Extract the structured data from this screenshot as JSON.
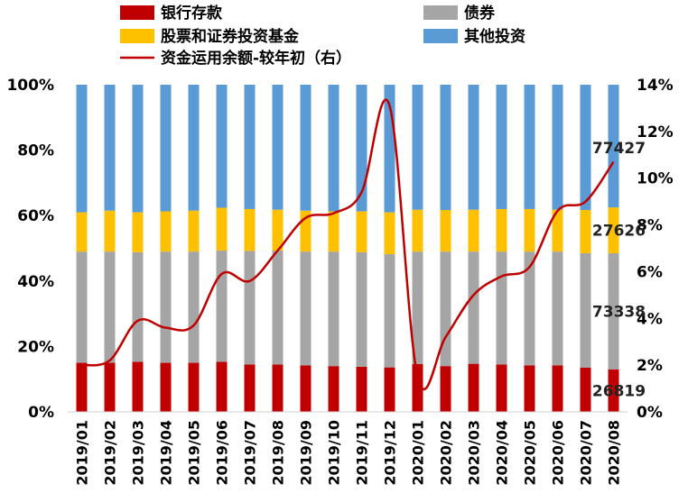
{
  "chart_data": {
    "type": "bar",
    "stacked": "percent",
    "categories": [
      "2019/01",
      "2019/02",
      "2019/03",
      "2019/04",
      "2019/05",
      "2019/06",
      "2019/07",
      "2019/08",
      "2019/09",
      "2019/10",
      "2019/11",
      "2019/12",
      "2020/01",
      "2020/02",
      "2020/03",
      "2020/04",
      "2020/05",
      "2020/06",
      "2020/07",
      "2020/08"
    ],
    "series": [
      {
        "name": "银行存款",
        "color": "#C00000",
        "values": [
          15.0,
          15.0,
          15.3,
          15.0,
          15.0,
          15.3,
          14.5,
          14.5,
          14.2,
          14.0,
          13.8,
          13.6,
          14.6,
          14.0,
          14.7,
          14.5,
          14.2,
          14.2,
          13.5,
          13.0
        ]
      },
      {
        "name": "债券",
        "color": "#A5A5A5",
        "values": [
          34.0,
          34.0,
          33.5,
          34.0,
          34.0,
          34.0,
          34.7,
          34.8,
          34.8,
          35.0,
          35.0,
          34.6,
          34.4,
          35.0,
          34.3,
          34.5,
          34.8,
          34.8,
          35.0,
          35.5
        ]
      },
      {
        "name": "股票和证券投资基金",
        "color": "#FFC000",
        "values": [
          12.0,
          12.5,
          12.2,
          12.3,
          12.5,
          13.1,
          12.8,
          12.5,
          12.5,
          12.3,
          12.5,
          12.8,
          12.8,
          12.7,
          12.8,
          13.0,
          13.0,
          12.8,
          13.2,
          14.0
        ]
      },
      {
        "name": "其他投资",
        "color": "#5B9BD5",
        "values": [
          39.0,
          38.5,
          39.0,
          38.7,
          38.5,
          37.6,
          38.0,
          38.2,
          38.5,
          38.7,
          38.7,
          39.0,
          38.2,
          38.3,
          38.2,
          38.0,
          38.0,
          38.2,
          38.3,
          37.5
        ]
      }
    ],
    "line": {
      "name": "资金运用余额-较年初（右）",
      "color": "#C00000",
      "values": [
        2.0,
        2.2,
        3.9,
        3.6,
        3.7,
        5.9,
        5.6,
        6.9,
        8.3,
        8.5,
        9.4,
        13.1,
        1.5,
        3.2,
        5.0,
        5.8,
        6.2,
        8.6,
        9.0,
        10.7
      ]
    },
    "y_left": {
      "min": 0,
      "max": 100,
      "ticks": [
        "0%",
        "20%",
        "40%",
        "60%",
        "80%",
        "100%"
      ]
    },
    "y_right": {
      "min": 0,
      "max": 14,
      "ticks": [
        "0%",
        "2%",
        "4%",
        "6%",
        "8%",
        "10%",
        "12%",
        "14%"
      ]
    },
    "data_labels": [
      {
        "text": "77427",
        "series": "其他投资"
      },
      {
        "text": "27626",
        "series": "股票和证券投资基金"
      },
      {
        "text": "73338",
        "series": "债券"
      },
      {
        "text": "26819",
        "series": "银行存款"
      }
    ],
    "legend_position": "top"
  }
}
